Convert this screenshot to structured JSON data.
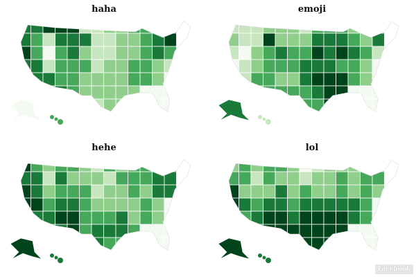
{
  "palette": [
    "#f4f9f2",
    "#c7e6c0",
    "#8fcf8b",
    "#45a85a",
    "#1a7a3a",
    "#00441b"
  ],
  "watermark": "Facebook",
  "maps": [
    {
      "title": "haha",
      "levels": [
        "4455511223355",
        "4314441122345",
        "5303421122343",
        "4413331223321",
        "4443322223320",
        "0044322222000",
        "0000001220000"
      ],
      "alaska": 0,
      "hawaii": 3
    },
    {
      "title": "emoji",
      "levels": [
        "1112221333223",
        "2115222444324",
        "1023433545431",
        "0123334443320",
        "1133224555320",
        "0023333455000",
        "0000003354000"
      ],
      "alaska": 4,
      "hawaii": 1
    },
    {
      "title": "hehe",
      "levels": [
        "5323321323344",
        "4414222133344",
        "5423331223244",
        "5534432222320",
        "5445533342320",
        "0044534443000",
        "0000004330000"
      ],
      "alaska": 5,
      "hawaii": 4
    },
    {
      "title": "lol",
      "levels": [
        "2323320122223",
        "3313221223233",
        "5222423223232",
        "5434434444430",
        "5345545555430",
        "0055555555000",
        "0000005555000"
      ],
      "alaska": 5,
      "hawaii": 4
    }
  ]
}
